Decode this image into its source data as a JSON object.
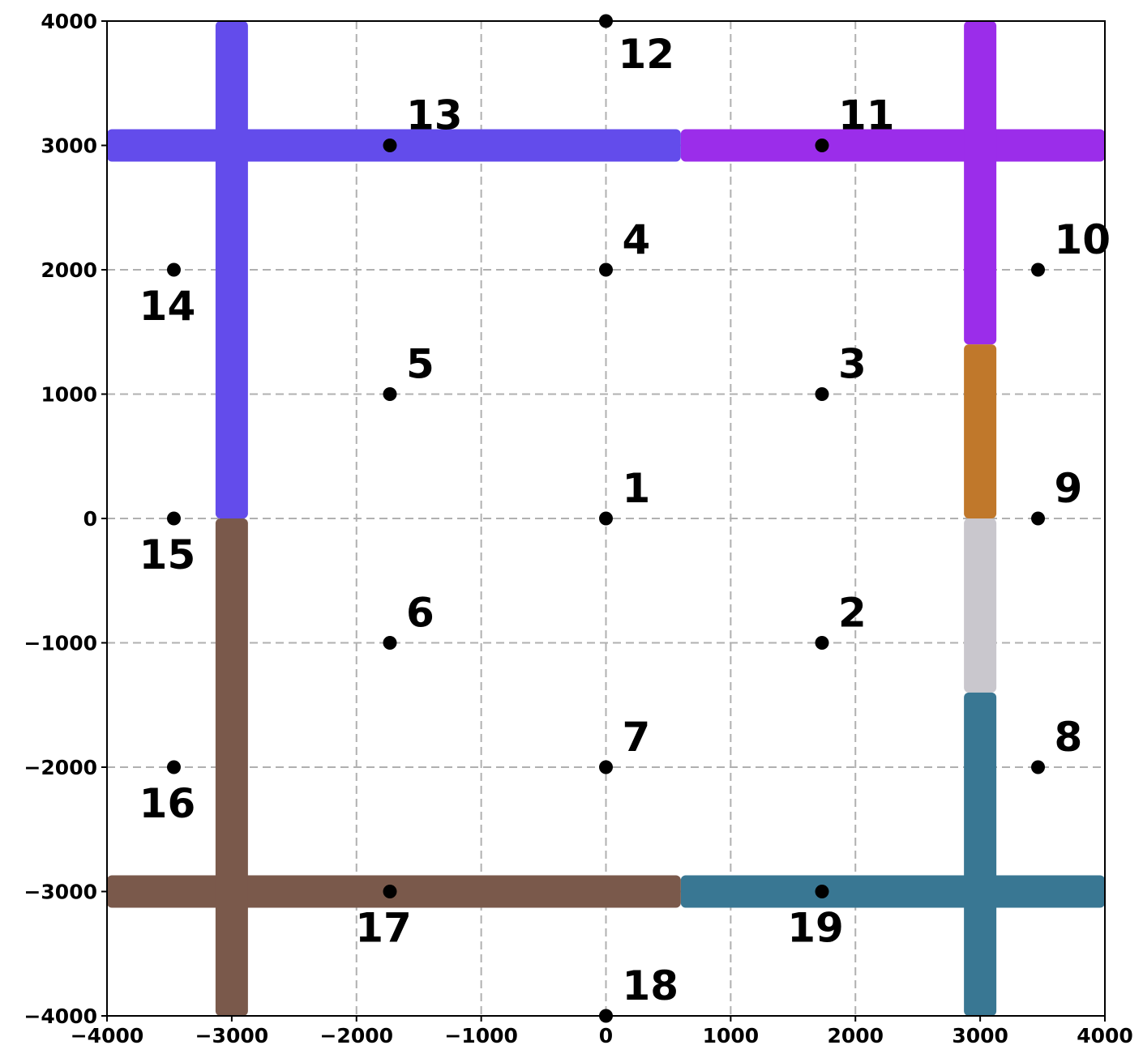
{
  "chart_data": {
    "type": "scatter",
    "xlim": [
      -4000,
      4000
    ],
    "ylim": [
      -4000,
      4000
    ],
    "grid": true,
    "x_ticks": [
      -4000,
      -3000,
      -2000,
      -1000,
      0,
      1000,
      2000,
      3000,
      4000
    ],
    "y_ticks": [
      -4000,
      -3000,
      -2000,
      -1000,
      0,
      1000,
      2000,
      3000,
      4000
    ],
    "x_tick_labels": [
      "−4000",
      "−3000",
      "−2000",
      "−1000",
      "0",
      "1000",
      "2000",
      "3000",
      "4000"
    ],
    "y_tick_labels": [
      "−4000",
      "−3000",
      "−2000",
      "−1000",
      "0",
      "1000",
      "2000",
      "3000",
      "4000"
    ],
    "points": [
      {
        "label": "1",
        "x": 0,
        "y": 0,
        "label_pos": "upper-right"
      },
      {
        "label": "2",
        "x": 1732,
        "y": -1000,
        "label_pos": "upper-right"
      },
      {
        "label": "3",
        "x": 1732,
        "y": 1000,
        "label_pos": "upper-right"
      },
      {
        "label": "4",
        "x": 0,
        "y": 2000,
        "label_pos": "upper-right"
      },
      {
        "label": "5",
        "x": -1732,
        "y": 1000,
        "label_pos": "upper-right"
      },
      {
        "label": "6",
        "x": -1732,
        "y": -1000,
        "label_pos": "upper-right"
      },
      {
        "label": "7",
        "x": 0,
        "y": -2000,
        "label_pos": "upper-right"
      },
      {
        "label": "8",
        "x": 3464,
        "y": -2000,
        "label_pos": "upper-right"
      },
      {
        "label": "9",
        "x": 3464,
        "y": 0,
        "label_pos": "upper-right"
      },
      {
        "label": "10",
        "x": 3464,
        "y": 2000,
        "label_pos": "upper-right"
      },
      {
        "label": "11",
        "x": 1732,
        "y": 3000,
        "label_pos": "upper-right"
      },
      {
        "label": "12",
        "x": 0,
        "y": 4000,
        "label_pos": "lower-right"
      },
      {
        "label": "13",
        "x": -1732,
        "y": 3000,
        "label_pos": "upper-right"
      },
      {
        "label": "14",
        "x": -3464,
        "y": 2000,
        "label_pos": "below"
      },
      {
        "label": "15",
        "x": -3464,
        "y": 0,
        "label_pos": "below"
      },
      {
        "label": "16",
        "x": -3464,
        "y": -2000,
        "label_pos": "below"
      },
      {
        "label": "17",
        "x": -1732,
        "y": -3000,
        "label_pos": "below"
      },
      {
        "label": "18",
        "x": 0,
        "y": -4000,
        "label_pos": "upper-right"
      },
      {
        "label": "19",
        "x": 1732,
        "y": -3000,
        "label_pos": "below"
      }
    ],
    "bands": [
      {
        "color": "#634ceb",
        "orient": "h",
        "at": 3000,
        "from": -4000,
        "to": 600
      },
      {
        "color": "#634ceb",
        "orient": "v",
        "at": -3000,
        "from": 0,
        "to": 4000
      },
      {
        "color": "#9b2dea",
        "orient": "h",
        "at": 3000,
        "from": 600,
        "to": 4000
      },
      {
        "color": "#9b2dea",
        "orient": "v",
        "at": 3000,
        "from": 1400,
        "to": 4000
      },
      {
        "color": "#c0782b",
        "orient": "v",
        "at": 3000,
        "from": 0,
        "to": 1400
      },
      {
        "color": "#c9c7cd",
        "orient": "v",
        "at": 3000,
        "from": -1400,
        "to": 0
      },
      {
        "color": "#397793",
        "orient": "v",
        "at": 3000,
        "from": -4000,
        "to": -1400
      },
      {
        "color": "#397793",
        "orient": "h",
        "at": -3000,
        "from": 600,
        "to": 4000
      },
      {
        "color": "#7a594b",
        "orient": "h",
        "at": -3000,
        "from": -4000,
        "to": 600
      },
      {
        "color": "#7a594b",
        "orient": "v",
        "at": -3000,
        "from": -4000,
        "to": 0
      }
    ],
    "point_color": "#000000"
  }
}
